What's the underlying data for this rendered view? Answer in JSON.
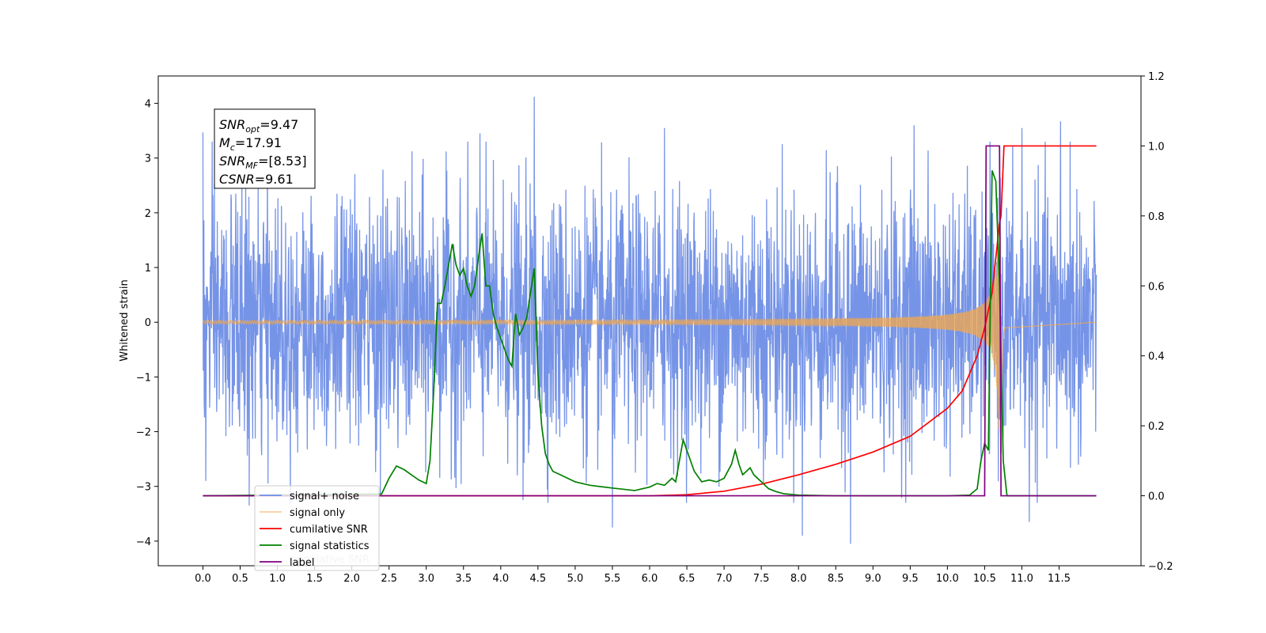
{
  "chart_data": {
    "type": "line",
    "title": "",
    "xlabel": "",
    "ylabel": "Whitened strain",
    "xlim": [
      -0.6,
      12.6
    ],
    "ylim": [
      -4.45,
      4.5
    ],
    "y2lim": [
      -0.2,
      1.2
    ],
    "grid": false,
    "xticks": [
      0.0,
      0.5,
      1.0,
      1.5,
      2.0,
      2.5,
      3.0,
      3.5,
      4.0,
      4.5,
      5.0,
      5.5,
      6.0,
      6.5,
      7.0,
      7.5,
      8.0,
      8.5,
      9.0,
      9.5,
      10.0,
      10.5,
      11.0,
      11.5
    ],
    "xtick_labels": [
      "0.0",
      "0.5",
      "1.0",
      "1.5",
      "2.0",
      "2.5",
      "3.0",
      "3.5",
      "4.0",
      "4.5",
      "5.0",
      "5.5",
      "6.0",
      "6.5",
      "7.0",
      "7.5",
      "8.0",
      "8.5",
      "9.0",
      "9.5",
      "10.0",
      "10.5",
      "11.0",
      "11.5"
    ],
    "yticks": [
      -4,
      -3,
      -2,
      -1,
      0,
      1,
      2,
      3,
      4
    ],
    "ytick_labels": [
      "−4",
      "−3",
      "−2",
      "−1",
      "0",
      "1",
      "2",
      "3",
      "4"
    ],
    "y2ticks": [
      -0.2,
      0.0,
      0.2,
      0.4,
      0.6,
      0.8,
      1.0,
      1.2
    ],
    "y2tick_labels": [
      "−0.2",
      "0.0",
      "0.2",
      "0.4",
      "0.6",
      "0.8",
      "1.0",
      "1.2"
    ],
    "legend_placement": "lower-left",
    "annotation": {
      "lines": [
        {
          "main": "SNR",
          "sub": "opt",
          "rest": "=9.47"
        },
        {
          "main": "M",
          "sub": "c",
          "rest": "=17.91"
        },
        {
          "main": "SNR",
          "sub": "MF",
          "rest": "=[8.53]"
        },
        {
          "main": "CSNR",
          "sub": "",
          "rest": "=9.61"
        }
      ]
    },
    "series": [
      {
        "name": "signal+ noise",
        "axis": "left",
        "color": "#6f8ee6",
        "kind": "noise",
        "x_range": [
          0.0,
          12.0
        ],
        "amplitude_2sigma": 2.3,
        "peak_values": [
          {
            "x": 0.0,
            "y": 3.47
          },
          {
            "x": 0.04,
            "y": -2.9
          },
          {
            "x": 0.62,
            "y": -3.35
          },
          {
            "x": 3.72,
            "y": 3.45
          },
          {
            "x": 4.3,
            "y": -3.25
          },
          {
            "x": 4.45,
            "y": 4.12
          },
          {
            "x": 5.5,
            "y": -3.75
          },
          {
            "x": 6.2,
            "y": 3.55
          },
          {
            "x": 8.05,
            "y": -3.9
          },
          {
            "x": 8.7,
            "y": -4.05
          },
          {
            "x": 9.55,
            "y": 3.6
          },
          {
            "x": 11.1,
            "y": -3.65
          },
          {
            "x": 11.52,
            "y": 3.67
          },
          {
            "x": 11.65,
            "y": 3.3
          },
          {
            "x": 11.0,
            "y": 3.55
          }
        ]
      },
      {
        "name": "signal only",
        "axis": "left",
        "color": "#f5a84a",
        "kind": "chirp",
        "x_range": [
          0.0,
          12.0
        ],
        "merger_x": 10.72,
        "peak_amplitude": 2.1
      },
      {
        "name": "cumilative SNR",
        "axis": "right",
        "color": "#ff0000",
        "x": [
          0.0,
          6.0,
          6.5,
          7.0,
          7.5,
          8.0,
          8.5,
          9.0,
          9.5,
          10.0,
          10.2,
          10.4,
          10.5,
          10.6,
          10.7,
          10.72,
          10.76,
          11.0,
          11.5,
          12.0
        ],
        "values": [
          0.0,
          0.0,
          0.003,
          0.013,
          0.033,
          0.06,
          0.09,
          0.125,
          0.17,
          0.25,
          0.3,
          0.4,
          0.48,
          0.58,
          0.78,
          0.8,
          1.0,
          1.0,
          1.0,
          1.0
        ]
      },
      {
        "name": "signal statistics",
        "axis": "right",
        "color": "#008000",
        "x": [
          0.0,
          2.4,
          2.5,
          2.6,
          2.7,
          2.8,
          2.9,
          3.0,
          3.05,
          3.1,
          3.15,
          3.2,
          3.25,
          3.3,
          3.35,
          3.4,
          3.45,
          3.5,
          3.55,
          3.6,
          3.65,
          3.7,
          3.75,
          3.8,
          3.85,
          3.9,
          3.95,
          4.0,
          4.05,
          4.1,
          4.15,
          4.2,
          4.25,
          4.3,
          4.35,
          4.4,
          4.45,
          4.5,
          4.55,
          4.6,
          4.65,
          4.7,
          4.8,
          4.9,
          5.0,
          5.2,
          5.5,
          5.8,
          6.0,
          6.1,
          6.2,
          6.3,
          6.35,
          6.4,
          6.45,
          6.5,
          6.55,
          6.6,
          6.7,
          6.8,
          6.9,
          7.0,
          7.1,
          7.15,
          7.2,
          7.25,
          7.3,
          7.35,
          7.4,
          7.5,
          7.6,
          7.7,
          7.8,
          8.0,
          8.5,
          9.0,
          9.5,
          10.0,
          10.3,
          10.4,
          10.45,
          10.5,
          10.55,
          10.6,
          10.65,
          10.7,
          10.75,
          10.8,
          12.0
        ],
        "values": [
          0.0,
          0.005,
          0.05,
          0.085,
          0.075,
          0.06,
          0.045,
          0.035,
          0.1,
          0.3,
          0.55,
          0.55,
          0.6,
          0.66,
          0.72,
          0.66,
          0.63,
          0.65,
          0.6,
          0.57,
          0.6,
          0.68,
          0.75,
          0.6,
          0.6,
          0.52,
          0.48,
          0.45,
          0.42,
          0.39,
          0.37,
          0.52,
          0.46,
          0.48,
          0.51,
          0.58,
          0.65,
          0.35,
          0.2,
          0.12,
          0.09,
          0.07,
          0.06,
          0.05,
          0.04,
          0.03,
          0.022,
          0.015,
          0.025,
          0.035,
          0.03,
          0.05,
          0.04,
          0.1,
          0.16,
          0.13,
          0.1,
          0.07,
          0.04,
          0.045,
          0.04,
          0.05,
          0.09,
          0.13,
          0.09,
          0.06,
          0.07,
          0.08,
          0.06,
          0.04,
          0.02,
          0.012,
          0.006,
          0.002,
          0.0,
          0.0,
          0.0,
          0.0,
          0.002,
          0.02,
          0.1,
          0.15,
          0.13,
          0.93,
          0.9,
          0.6,
          0.1,
          0.0,
          0.0
        ]
      },
      {
        "name": "label",
        "axis": "right",
        "color": "#800080",
        "x": [
          0.0,
          10.5,
          10.52,
          10.7,
          10.72,
          12.0
        ],
        "values": [
          0.0,
          0.0,
          1.0,
          1.0,
          0.0,
          0.0
        ]
      }
    ],
    "legend_overlap_text": "cumilative SNR"
  }
}
